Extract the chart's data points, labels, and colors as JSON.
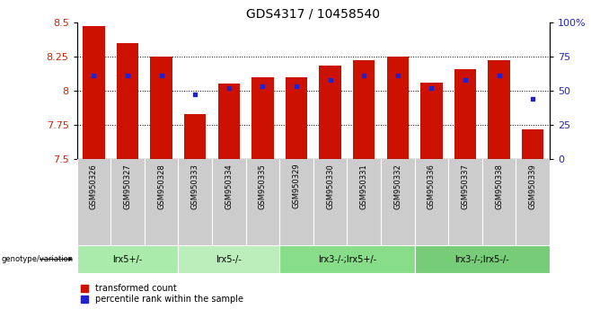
{
  "title": "GDS4317 / 10458540",
  "samples": [
    "GSM950326",
    "GSM950327",
    "GSM950328",
    "GSM950333",
    "GSM950334",
    "GSM950335",
    "GSM950329",
    "GSM950330",
    "GSM950331",
    "GSM950332",
    "GSM950336",
    "GSM950337",
    "GSM950338",
    "GSM950339"
  ],
  "red_values": [
    8.47,
    8.35,
    8.25,
    7.83,
    8.05,
    8.1,
    8.1,
    8.18,
    8.22,
    8.25,
    8.06,
    8.16,
    8.22,
    7.72
  ],
  "blue_values": [
    61,
    61,
    61,
    47,
    52,
    53,
    53,
    58,
    61,
    61,
    52,
    58,
    61,
    44
  ],
  "y_min": 7.5,
  "y_max": 8.5,
  "y_ticks_left": [
    7.5,
    7.75,
    8.0,
    8.25,
    8.5
  ],
  "y_ticks_right": [
    0,
    25,
    50,
    75,
    100
  ],
  "bar_color": "#CC1100",
  "dot_color": "#2222CC",
  "bar_width": 0.65,
  "groups": [
    {
      "label": "lrx5+/-",
      "start": 0,
      "end": 3,
      "color": "#AAEAAA"
    },
    {
      "label": "lrx5-/-",
      "start": 3,
      "end": 6,
      "color": "#BBEEBB"
    },
    {
      "label": "lrx3-/-;lrx5+/-",
      "start": 6,
      "end": 10,
      "color": "#88DD88"
    },
    {
      "label": "lrx3-/-;lrx5-/-",
      "start": 10,
      "end": 14,
      "color": "#77CC77"
    }
  ],
  "sample_bg_color": "#CCCCCC",
  "genotype_label": "genotype/variation",
  "legend_red": "transformed count",
  "legend_blue": "percentile rank within the sample",
  "title_fontsize": 10,
  "ylabel_color_left": "#CC2200",
  "ylabel_color_right": "#2222CC"
}
